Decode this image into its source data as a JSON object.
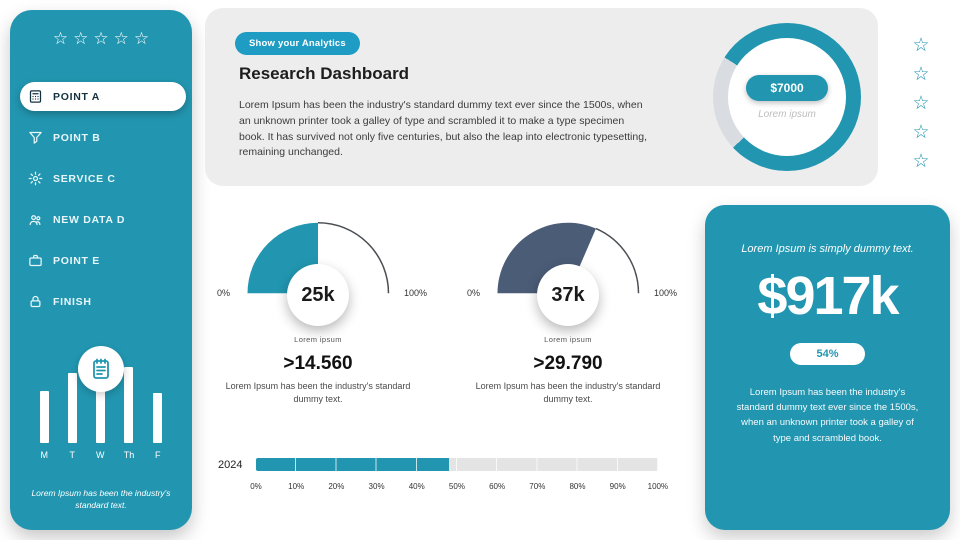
{
  "colors": {
    "teal": "#2296b0",
    "badge_blue": "#1e9cc4",
    "slate": "#4b5c77",
    "card_gray": "#ededed",
    "track_gray": "#e4e4e4",
    "donut_gray": "#d9dde1"
  },
  "sidebar": {
    "stars": 5,
    "items": [
      {
        "label": "POINT A",
        "icon": "calculator-icon",
        "active": true
      },
      {
        "label": "POINT B",
        "icon": "funnel-icon",
        "active": false
      },
      {
        "label": "SERVICE C",
        "icon": "gear-icon",
        "active": false
      },
      {
        "label": "NEW DATA D",
        "icon": "users-icon",
        "active": false
      },
      {
        "label": "POINT E",
        "icon": "briefcase-icon",
        "active": false
      },
      {
        "label": "FINISH",
        "icon": "lock-icon",
        "active": false
      }
    ],
    "badge_icon": "notepad-icon",
    "chart": {
      "days": [
        "M",
        "T",
        "W",
        "Th",
        "F"
      ],
      "heights": [
        52,
        70,
        66,
        76,
        50
      ]
    },
    "caption": "Lorem Ipsum has been the industry's standard text."
  },
  "header": {
    "badge": "Show your Analytics",
    "title": "Research Dashboard",
    "body": "Lorem Ipsum has been the industry's standard dummy text ever since the 1500s, when an unknown printer took a galley of type and scrambled it to make a type specimen book. It has survived not only five centuries, but also the leap into electronic typesetting, remaining unchanged.",
    "stars": 5,
    "donut": {
      "value": "$7000",
      "sub": "Lorem ipsum",
      "gray_start": 63,
      "gray_end": 84
    }
  },
  "gauges": [
    {
      "value": "25k",
      "min": "0%",
      "max": "100%",
      "sub": "Lorem ipsum",
      "fraction": 0.5,
      "color_key": "teal",
      "stat": ">14.560",
      "caption": "Lorem Ipsum has been the industry's standard dummy text."
    },
    {
      "value": "37k",
      "min": "0%",
      "max": "100%",
      "sub": "Lorem ipsum",
      "fraction": 0.63,
      "color_key": "slate",
      "stat": ">29.790",
      "caption": "Lorem Ipsum has been the industry's standard dummy text."
    }
  ],
  "progress": {
    "year": "2024",
    "percent": 48,
    "ticks": [
      "0%",
      "10%",
      "20%",
      "30%",
      "40%",
      "50%",
      "60%",
      "70%",
      "80%",
      "90%",
      "100%"
    ]
  },
  "right_panel": {
    "title": "Lorem Ipsum is simply dummy text.",
    "big": "$917k",
    "badge": "54%",
    "body": "Lorem Ipsum has been the industry's standard dummy text ever since the 1500s, when an unknown printer took a galley of type and scrambled book."
  }
}
